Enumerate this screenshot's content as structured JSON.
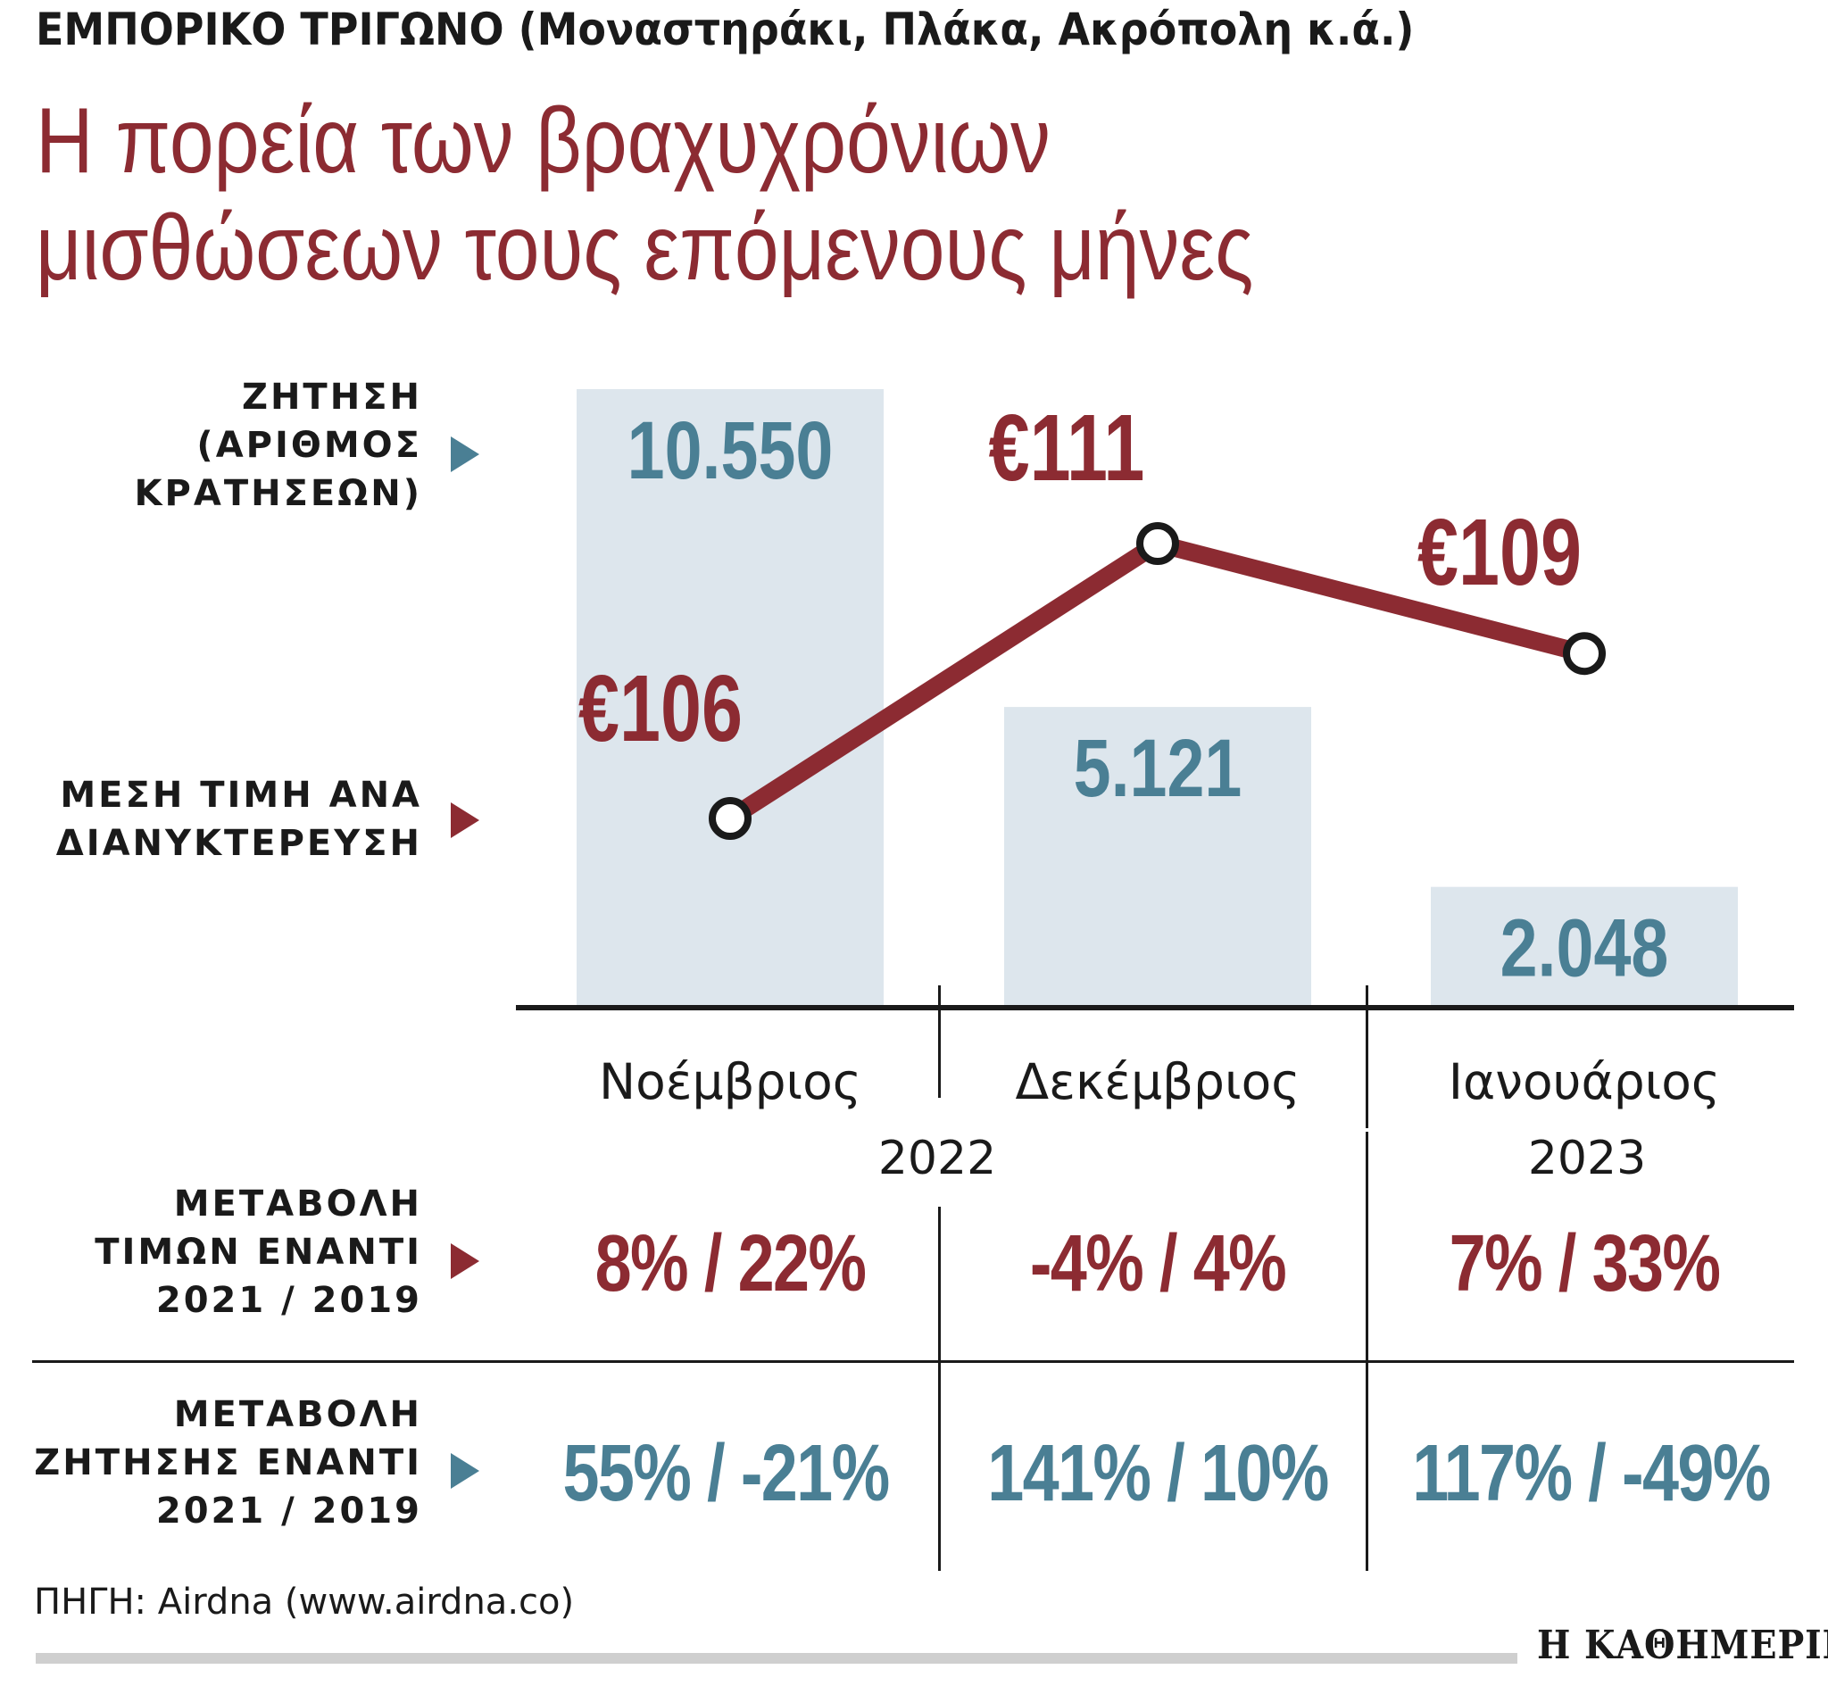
{
  "header": {
    "kicker": "ΕΜΠΟΡΙΚΟ ΤΡΙΓΩΝΟ (Μοναστηράκι, Πλάκα, Ακρόπολη κ.ά.)",
    "headline_line1": "Η πορεία των βραχυχρόνιων",
    "headline_line2": "μισθώσεων τους επόμενους μήνες"
  },
  "legend": {
    "demand_line1": "ΖΗΤΗΣΗ",
    "demand_line2": "(ΑΡΙΘΜΟΣ",
    "demand_line3": "ΚΡΑΤΗΣΕΩΝ)",
    "price_line1": "ΜΕΣΗ ΤΙΜΗ ΑΝΑ",
    "price_line2": "ΔΙΑΝΥΚΤΕΡΕΥΣΗ"
  },
  "chart_data": {
    "type": "bar",
    "title": "Η πορεία των βραχυχρόνιων μισθώσεων τους επόμενους μήνες",
    "categories": [
      "Νοέμβριος",
      "Δεκέμβριος",
      "Ιανουάριος"
    ],
    "years": [
      "2022",
      "2023"
    ],
    "series": [
      {
        "name": "ΖΗΤΗΣΗ (ΑΡΙΘΜΟΣ ΚΡΑΤΗΣΕΩΝ)",
        "type": "bar",
        "values": [
          10550,
          5121,
          2048
        ],
        "labels": [
          "10.550",
          "5.121",
          "2.048"
        ]
      },
      {
        "name": "ΜΕΣΗ ΤΙΜΗ ΑΝΑ ΔΙΑΝΥΚΤΕΡΕΥΣΗ",
        "type": "line",
        "values": [
          106,
          111,
          109
        ],
        "labels": [
          "€106",
          "€111",
          "€109"
        ]
      }
    ],
    "colors": {
      "bar": "#dde6ed",
      "bar_label": "#4a7f94",
      "line": "#8c2b32",
      "axis": "#1a1a1a"
    }
  },
  "table": {
    "price_change_label_line1": "ΜΕΤΑΒΟΛΗ",
    "price_change_label_line2": "ΤΙΜΩΝ ΕΝΑΝΤΙ",
    "price_change_label_line3": "2021 / 2019",
    "price_change": [
      "8% / 22%",
      "-4% / 4%",
      "7% / 33%"
    ],
    "demand_change_label_line1": "ΜΕΤΑΒΟΛΗ",
    "demand_change_label_line2": "ΖΗΤΗΣΗΣ ΕΝΑΝΤΙ",
    "demand_change_label_line3": "2021 / 2019",
    "demand_change": [
      "55% / -21%",
      "141% / 10%",
      "117% / -49%"
    ]
  },
  "footer": {
    "source": "ΠΗΓΗ: Airdna (www.airdna.co)",
    "brand": "Η ΚΑΘΗΜΕΡΙΝΗ"
  }
}
